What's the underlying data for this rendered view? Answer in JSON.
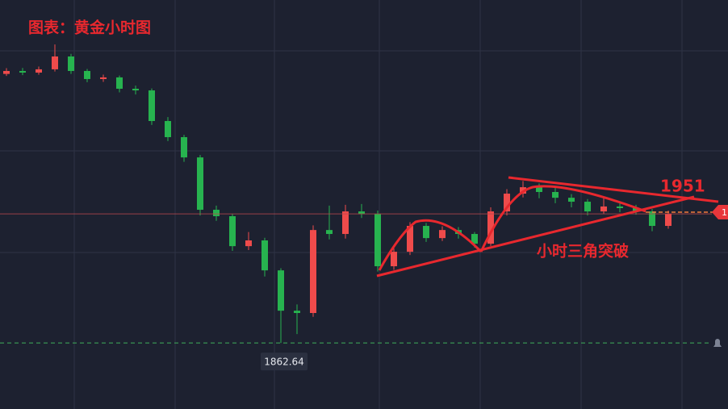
{
  "chart_data": {
    "type": "candlestick",
    "title": "图表：黄金小时图",
    "ohlc": [
      [
        2026.0,
        2029.5,
        2024.8,
        2027.8
      ],
      [
        2027.8,
        2029.6,
        2025.3,
        2026.8
      ],
      [
        2026.8,
        2030.5,
        2025.5,
        2028.8
      ],
      [
        2028.8,
        2043.9,
        2027.5,
        2036.6
      ],
      [
        2036.6,
        2038.2,
        2026.0,
        2027.8
      ],
      [
        2027.8,
        2029.0,
        2021.0,
        2022.9
      ],
      [
        2022.9,
        2025.6,
        2021.2,
        2023.9
      ],
      [
        2023.9,
        2025.0,
        2014.8,
        2017.0
      ],
      [
        2017.0,
        2018.9,
        2013.5,
        2016.0
      ],
      [
        2016.0,
        2017.2,
        1995.0,
        1997.4
      ],
      [
        1997.4,
        1999.8,
        1985.2,
        1987.6
      ],
      [
        1987.6,
        1989.0,
        1972.6,
        1975.3
      ],
      [
        1975.3,
        1976.8,
        1940.0,
        1943.5
      ],
      [
        1943.5,
        1946.0,
        1936.8,
        1939.6
      ],
      [
        1939.6,
        1941.0,
        1918.5,
        1921.4
      ],
      [
        1921.4,
        1930.0,
        1919.0,
        1924.9
      ],
      [
        1924.9,
        1926.5,
        1903.0,
        1906.7
      ],
      [
        1906.7,
        1908.0,
        1862.64,
        1882.2
      ],
      [
        1882.2,
        1886.0,
        1868.0,
        1880.8
      ],
      [
        1880.8,
        1934.0,
        1878.5,
        1931.2
      ],
      [
        1931.2,
        1946.0,
        1925.5,
        1928.8
      ],
      [
        1928.8,
        1946.5,
        1926.0,
        1942.5
      ],
      [
        1942.5,
        1947.0,
        1938.5,
        1941.0
      ],
      [
        1941.0,
        1943.0,
        1906.0,
        1909.2
      ],
      [
        1909.2,
        1920.0,
        1907.0,
        1918.0
      ],
      [
        1918.0,
        1936.0,
        1916.0,
        1933.7
      ],
      [
        1933.7,
        1935.5,
        1924.0,
        1926.3
      ],
      [
        1926.3,
        1933.5,
        1924.5,
        1931.2
      ],
      [
        1931.2,
        1933.0,
        1926.0,
        1928.8
      ],
      [
        1928.8,
        1930.0,
        1920.5,
        1922.9
      ],
      [
        1922.9,
        1945.0,
        1921.5,
        1942.5
      ],
      [
        1942.5,
        1956.0,
        1940.0,
        1953.3
      ],
      [
        1953.3,
        1961.0,
        1951.0,
        1957.2
      ],
      [
        1957.2,
        1959.5,
        1950.5,
        1954.3
      ],
      [
        1954.3,
        1957.0,
        1947.5,
        1950.8
      ],
      [
        1950.8,
        1953.0,
        1945.0,
        1948.4
      ],
      [
        1948.4,
        1950.0,
        1940.0,
        1942.5
      ],
      [
        1942.5,
        1951.0,
        1941.0,
        1945.5
      ],
      [
        1945.5,
        1947.5,
        1942.0,
        1944.5
      ],
      [
        1944.5,
        1946.5,
        1940.5,
        1942.5
      ],
      [
        1942.5,
        1944.0,
        1930.5,
        1933.7
      ],
      [
        1933.7,
        1943.0,
        1932.0,
        1941.0
      ]
    ],
    "up_color": "#ef4b4b",
    "down_color": "#27b34f",
    "ylim": [
      1822.5,
      2070.9
    ],
    "low": 1862.64,
    "annotation": "1951",
    "pattern_label": "小时三角突破",
    "price_tag": "1"
  }
}
